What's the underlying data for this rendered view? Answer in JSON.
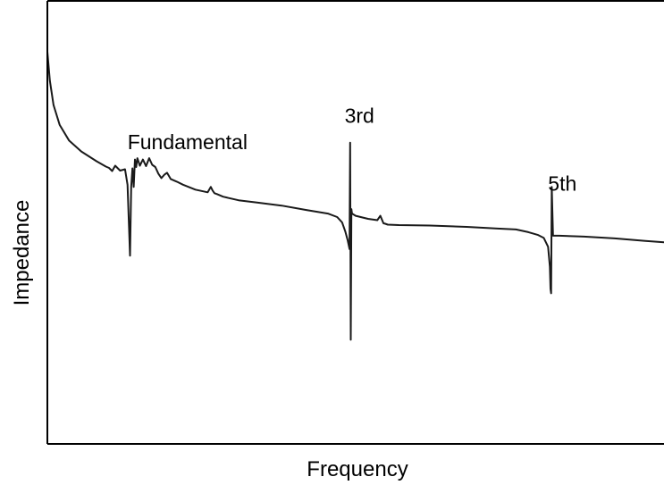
{
  "chart_data": {
    "type": "line",
    "title": "",
    "xlabel": "Frequency",
    "ylabel": "Impedance",
    "xlim": [
      0,
      1000
    ],
    "ylim": [
      0,
      1000
    ],
    "grid": false,
    "legend": "none",
    "axis_ticks": "none",
    "line_color": "#1a1a1a",
    "series": [
      {
        "x": [
          0,
          4,
          10,
          20,
          35,
          55,
          80,
          95,
          100,
          105,
          110,
          118,
          126,
          130,
          134,
          136,
          138,
          140,
          142,
          144,
          146,
          150,
          155,
          160,
          165,
          170,
          175,
          180,
          185,
          190,
          194,
          200,
          210,
          220,
          240,
          260,
          265,
          268,
          271,
          275,
          285,
          310,
          340,
          380,
          420,
          455,
          470,
          478,
          483,
          487,
          490,
          491,
          492,
          493,
          494,
          500,
          520,
          535,
          540,
          545,
          548,
          552,
          570,
          620,
          680,
          730,
          760,
          780,
          795,
          805,
          812,
          815,
          816,
          817,
          818,
          819,
          820,
          830,
          870,
          920,
          970,
          1000
        ],
        "y": [
          885,
          820,
          765,
          720,
          685,
          660,
          638,
          626,
          623,
          616,
          628,
          617,
          620,
          585,
          425,
          580,
          622,
          580,
          642,
          625,
          645,
          628,
          642,
          627,
          645,
          630,
          625,
          610,
          600,
          608,
          612,
          598,
          592,
          585,
          574,
          568,
          580,
          572,
          566,
          564,
          558,
          550,
          545,
          538,
          528,
          520,
          512,
          500,
          480,
          460,
          440,
          680,
          235,
          530,
          520,
          515,
          508,
          505,
          515,
          498,
          497,
          495,
          494,
          493,
          490,
          486,
          484,
          478,
          472,
          465,
          445,
          400,
          350,
          340,
          580,
          525,
          470,
          470,
          468,
          464,
          458,
          455
        ]
      }
    ],
    "annotations": [
      {
        "text": "Fundamental",
        "x": 130,
        "y": 665
      },
      {
        "text": "3rd",
        "x": 482,
        "y": 725
      },
      {
        "text": "5th",
        "x": 812,
        "y": 572
      }
    ]
  }
}
